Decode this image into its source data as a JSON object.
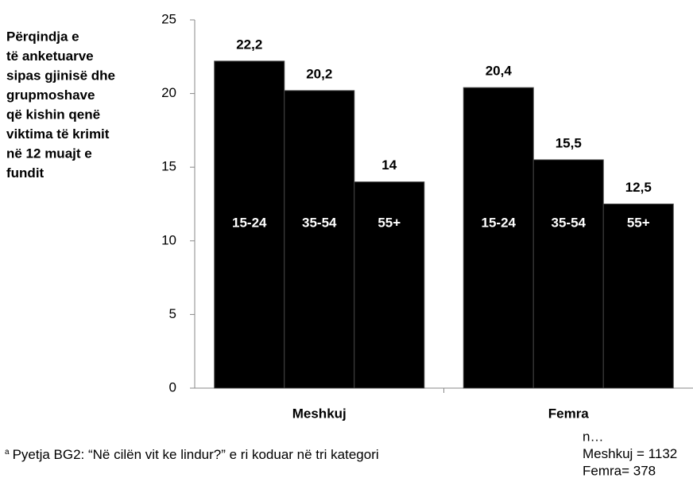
{
  "chart_data": {
    "type": "bar",
    "title_lines": [
      "Përqindja e",
      "të anketuarve",
      "sipas gjinisë dhe",
      "grupmoshave",
      "që kishin qenë",
      "viktima të krimit",
      "në 12 muajt e",
      "fundit"
    ],
    "categories": [
      "Meshkuj",
      "Femra"
    ],
    "series": [
      {
        "name": "15-24",
        "color": "#000000",
        "values": [
          22.2,
          20.4
        ],
        "value_labels": [
          "22,2",
          "20,4"
        ]
      },
      {
        "name": "35-54",
        "color": "#000000",
        "values": [
          20.2,
          15.5
        ],
        "value_labels": [
          "20,2",
          "15,5"
        ]
      },
      {
        "name": "55+",
        "color": "#000000",
        "values": [
          14,
          12.5
        ],
        "value_labels": [
          "14",
          "12,5"
        ]
      }
    ],
    "ylim": [
      0,
      25
    ],
    "yticks": [
      0,
      5,
      10,
      15,
      20,
      25
    ],
    "grid": false,
    "footnote_marker": "a",
    "footnote": "Pyetja BG2: “Në cilën vit ke lindur?” e ri koduar në tri kategori",
    "sample_note": [
      "n…",
      "Meshkuj = 1132",
      "Femra= 378"
    ]
  }
}
